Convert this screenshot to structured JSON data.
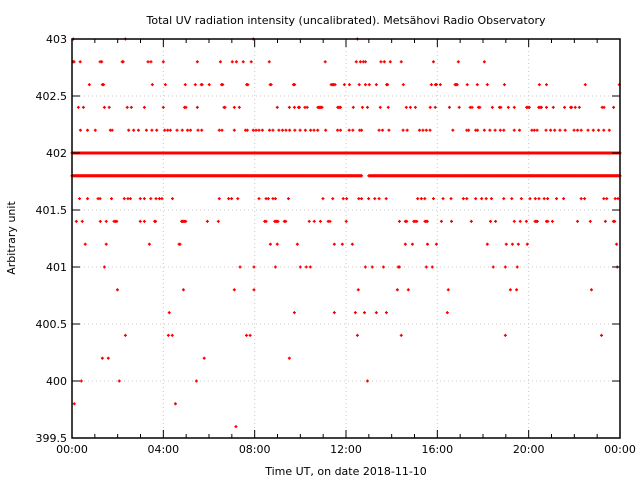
{
  "chart_data": {
    "type": "scatter",
    "title": "Total UV radiation intensity (uncalibrated). Metsähovi Radio Observatory",
    "xlabel": "Time UT, on date 2018-11-10",
    "ylabel": "Arbitrary unit",
    "xlim": [
      0,
      24
    ],
    "ylim": [
      399.5,
      403
    ],
    "x_ticks": [
      0,
      4,
      8,
      12,
      16,
      20,
      24
    ],
    "x_tick_labels": [
      "00:00",
      "04:00",
      "08:00",
      "12:00",
      "16:00",
      "20:00",
      "00:00"
    ],
    "y_ticks": [
      399.5,
      400,
      400.5,
      401,
      401.5,
      402,
      402.5,
      403
    ],
    "y_tick_labels": [
      "399.5",
      "400",
      "400.5",
      "401",
      "401.5",
      "402",
      "402.5",
      "403"
    ],
    "grid": true,
    "marker_color": "#ff0000",
    "x_unit": "hours UT",
    "series": [
      {
        "level": 403,
        "times": [
          0.06,
          2.34,
          7.94,
          12.5
        ]
      },
      {
        "level": 402.8,
        "times": [
          0.05,
          0.09,
          0.36,
          1.23,
          1.3,
          2.2,
          2.24,
          3.33,
          3.46,
          4.0,
          5.49,
          6.5,
          7.02,
          7.2,
          7.5,
          7.85,
          8.64,
          11.09,
          12.45,
          12.63,
          12.76,
          12.85,
          13.53,
          13.68,
          13.94,
          14.42,
          15.83,
          16.92,
          18.06
        ]
      },
      {
        "level": 402.6,
        "times": [
          0.76,
          1.33,
          1.38,
          3.52,
          4.09,
          4.96,
          5.4,
          5.66,
          5.7,
          6.01,
          6.55,
          6.6,
          7.65,
          7.7,
          8.68,
          8.72,
          9.7,
          9.75,
          11.35,
          11.41,
          11.46,
          11.52,
          11.93,
          12.15,
          12.58,
          12.85,
          13.02,
          13.33,
          13.78,
          13.82,
          14.51,
          15.74,
          15.92,
          15.96,
          16.13,
          16.78,
          16.82,
          16.87,
          17.31,
          17.75,
          18.19,
          18.94,
          20.47,
          20.78,
          22.48,
          23.97
        ]
      },
      {
        "level": 402.4,
        "times": [
          0.28,
          0.5,
          1.42,
          1.63,
          2.42,
          2.6,
          3.17,
          4.0,
          4.93,
          4.99,
          5.49,
          6.66,
          6.7,
          7.11,
          7.33,
          8.99,
          9.52,
          9.74,
          9.92,
          9.96,
          10.2,
          10.3,
          10.77,
          10.82,
          10.86,
          10.91,
          10.95,
          11.64,
          11.7,
          11.76,
          12.32,
          12.72,
          12.94,
          13.5,
          13.85,
          14.64,
          14.82,
          15.04,
          15.69,
          15.91,
          16.53,
          16.96,
          17.44,
          17.52,
          17.8,
          17.86,
          18.41,
          18.72,
          18.78,
          19.11,
          19.37,
          19.91,
          19.97,
          20.03,
          20.44,
          20.5,
          20.56,
          20.78,
          21.08,
          21.57,
          21.84,
          21.88,
          22.04,
          22.22,
          23.22,
          23.3,
          23.72
        ]
      },
      {
        "level": 402.2,
        "times": [
          0.37,
          0.68,
          1.02,
          1.68,
          1.76,
          2.48,
          2.7,
          2.91,
          3.26,
          3.5,
          3.71,
          4.06,
          4.19,
          4.31,
          4.6,
          4.83,
          5.06,
          5.19,
          5.52,
          5.68,
          6.45,
          6.57,
          7.11,
          7.6,
          7.68,
          7.94,
          8.06,
          8.19,
          8.34,
          8.65,
          8.8,
          9.06,
          9.22,
          9.37,
          9.53,
          9.76,
          9.99,
          10.22,
          10.45,
          10.6,
          10.76,
          11.11,
          11.63,
          11.76,
          12.14,
          12.3,
          12.6,
          12.68,
          13.45,
          13.6,
          13.88,
          14.5,
          14.68,
          15.22,
          15.37,
          15.52,
          15.68,
          16.68,
          17.29,
          17.37,
          17.68,
          17.76,
          18.06,
          18.3,
          18.53,
          18.76,
          18.91,
          19.37,
          19.6,
          20.14,
          20.25,
          20.37,
          20.76,
          20.96,
          21.14,
          21.37,
          21.6,
          21.99,
          22.14,
          22.3,
          22.6,
          22.83,
          23.06,
          23.29,
          23.53
        ]
      },
      {
        "level": 402,
        "ranges": [
          [
            0,
            24
          ]
        ],
        "step": 0.04
      },
      {
        "level": 401.8,
        "ranges": [
          [
            0,
            12.7
          ],
          [
            13.0,
            24
          ]
        ],
        "step": 0.04
      },
      {
        "level": 401.6,
        "times": [
          0.33,
          0.68,
          1.14,
          1.23,
          1.73,
          2.29,
          2.45,
          2.56,
          2.99,
          3.17,
          3.45,
          3.68,
          3.83,
          3.94,
          4.4,
          6.45,
          6.86,
          6.99,
          7.26,
          8.19,
          8.5,
          8.6,
          8.8,
          8.91,
          9.48,
          10.99,
          11.42,
          11.88,
          12.03,
          12.56,
          12.68,
          12.99,
          13.26,
          13.45,
          13.76,
          15.14,
          15.3,
          15.45,
          15.83,
          16.25,
          16.6,
          17.14,
          17.29,
          17.68,
          17.94,
          18.14,
          18.37,
          18.91,
          19.26,
          19.68,
          20.06,
          20.29,
          20.45,
          20.68,
          20.83,
          21.22,
          21.53,
          22.3,
          22.45,
          23.29,
          23.42,
          23.79,
          23.91
        ]
      },
      {
        "level": 401.4,
        "times": [
          0.19,
          0.45,
          1.24,
          1.5,
          1.84,
          1.9,
          1.96,
          2.99,
          3.17,
          3.62,
          3.66,
          4.8,
          4.84,
          4.88,
          4.92,
          4.98,
          5.93,
          6.41,
          8.44,
          8.5,
          8.88,
          8.93,
          8.97,
          9.02,
          9.3,
          9.36,
          10.39,
          10.61,
          10.88,
          11.22,
          11.3,
          12.01,
          14.34,
          14.6,
          14.66,
          14.97,
          15.03,
          15.1,
          15.46,
          15.51,
          15.56,
          16.18,
          16.62,
          17.49,
          18.33,
          18.55,
          19.37,
          19.63,
          19.9,
          20.28,
          20.33,
          20.38,
          20.78,
          20.84,
          21.04,
          22.14,
          22.7,
          23.36,
          23.71,
          23.77
        ]
      },
      {
        "level": 401.2,
        "times": [
          0.58,
          1.5,
          3.39,
          4.69,
          4.73,
          8.69,
          8.99,
          9.87,
          11.49,
          11.84,
          12.28,
          14.6,
          14.91,
          15.57,
          15.96,
          18.19,
          19.02,
          19.29,
          19.55,
          19.94,
          23.85
        ]
      },
      {
        "level": 401,
        "times": [
          1.42,
          7.36,
          7.97,
          8.91,
          10.0,
          10.26,
          10.44,
          12.85,
          13.15,
          13.64,
          14.29,
          14.34,
          15.52,
          15.78,
          18.45,
          18.98,
          19.5,
          23.88
        ]
      },
      {
        "level": 400.8,
        "times": [
          1.99,
          4.88,
          7.11,
          7.97,
          12.54,
          14.25,
          14.73,
          16.48,
          19.2,
          19.47,
          22.75
        ]
      },
      {
        "level": 400.6,
        "times": [
          4.26,
          9.74,
          11.49,
          12.41,
          12.81,
          13.33,
          13.77,
          16.44
        ]
      },
      {
        "level": 400.4,
        "times": [
          2.34,
          4.22,
          4.39,
          7.64,
          7.8,
          12.5,
          14.42,
          18.98,
          23.19
        ]
      },
      {
        "level": 400.2,
        "times": [
          1.33,
          1.59,
          5.79,
          9.52
        ]
      },
      {
        "level": 400,
        "times": [
          0.41,
          2.07,
          5.45,
          12.94
        ]
      },
      {
        "level": 399.8,
        "times": [
          0.1,
          4.53
        ]
      },
      {
        "level": 399.6,
        "times": [
          7.18
        ]
      }
    ]
  }
}
